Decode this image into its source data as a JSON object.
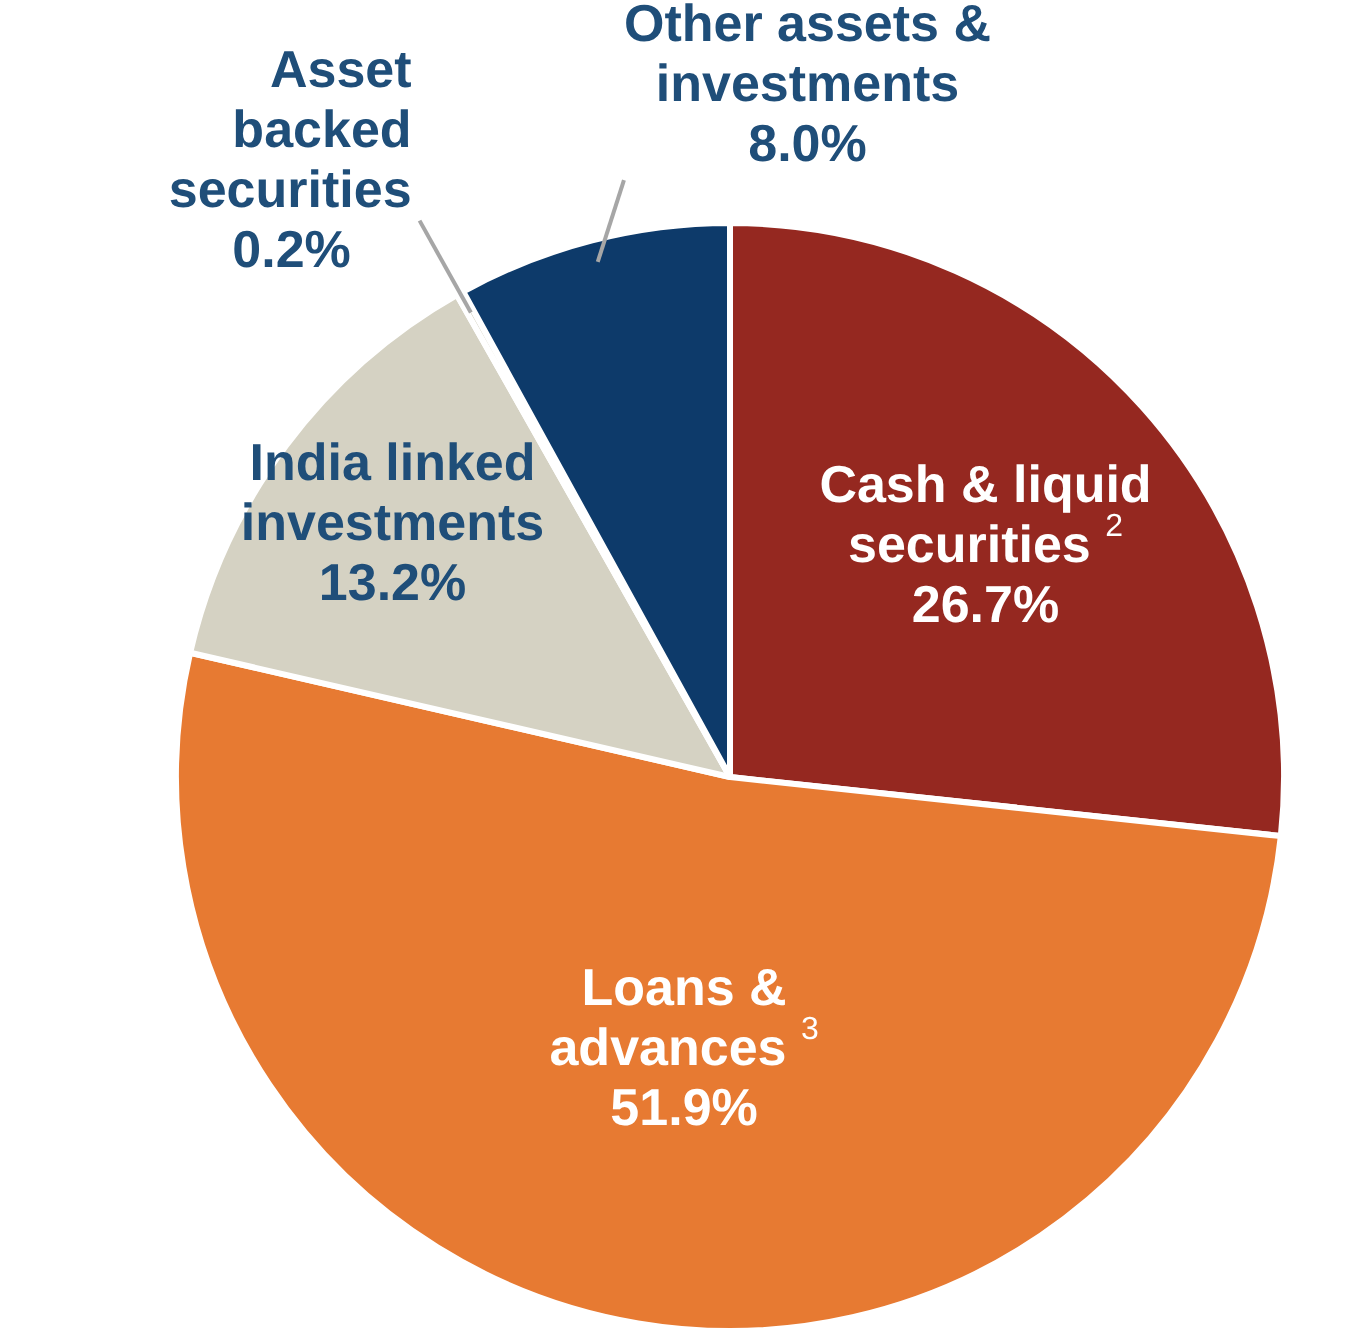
{
  "chart_data": {
    "type": "pie",
    "categories": [
      "Cash & liquid securities $^{2}$",
      "Loans & advances $^{3}$",
      "India linked investments",
      "Asset backed securities",
      "Other assets & investments"
    ],
    "values": [
      26.7,
      51.9,
      13.2,
      0.2,
      8.0
    ],
    "value_labels": [
      "26.7%",
      "51.9%",
      "13.2%",
      "0.2%",
      "8.0%"
    ],
    "colors": [
      "#952820",
      "#e77a32",
      "#d5d2c3",
      "#d5d2c3",
      "#0d3a6a"
    ]
  }
}
